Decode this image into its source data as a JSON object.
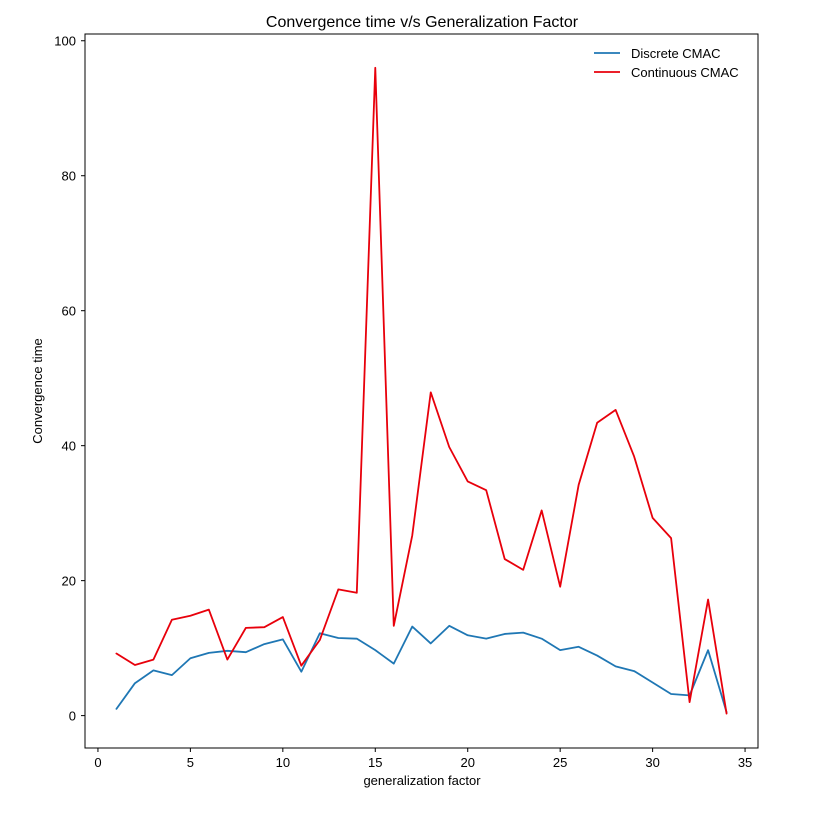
{
  "chart_data": {
    "type": "line",
    "title": "Convergence time v/s Generalization Factor",
    "xlabel": "generalization factor",
    "ylabel": "Convergence time",
    "xlim": [
      -0.7,
      35.7
    ],
    "ylim": [
      -4.8,
      101.0
    ],
    "xticks": [
      0,
      5,
      10,
      15,
      20,
      25,
      30,
      35
    ],
    "yticks": [
      0,
      20,
      40,
      60,
      80,
      100
    ],
    "grid": false,
    "legend_position": "top-right",
    "x": [
      1,
      2,
      3,
      4,
      5,
      6,
      7,
      8,
      9,
      10,
      11,
      12,
      13,
      14,
      15,
      16,
      17,
      18,
      19,
      20,
      21,
      22,
      23,
      24,
      25,
      26,
      27,
      28,
      29,
      30,
      31,
      32,
      33,
      34
    ],
    "series": [
      {
        "name": "Discrete CMAC",
        "color": "#1f77b4",
        "values": [
          1.0,
          4.8,
          6.7,
          6.0,
          8.5,
          9.3,
          9.6,
          9.4,
          10.6,
          11.3,
          6.5,
          12.2,
          11.5,
          11.4,
          9.7,
          7.7,
          13.2,
          10.7,
          13.3,
          11.9,
          11.4,
          12.1,
          12.3,
          11.4,
          9.7,
          10.2,
          8.9,
          7.3,
          6.6,
          4.9,
          3.2,
          3.0,
          9.7,
          0.5
        ]
      },
      {
        "name": "Continuous CMAC",
        "color": "#e8000b",
        "values": [
          9.2,
          7.5,
          8.3,
          14.2,
          14.8,
          15.7,
          8.3,
          13.0,
          13.1,
          14.6,
          7.4,
          11.2,
          18.7,
          18.2,
          96.0,
          13.3,
          26.7,
          47.9,
          39.8,
          34.7,
          33.4,
          23.2,
          21.6,
          30.4,
          19.1,
          34.2,
          43.4,
          45.3,
          38.4,
          29.3,
          26.3,
          2.0,
          17.2,
          0.3
        ]
      }
    ]
  }
}
